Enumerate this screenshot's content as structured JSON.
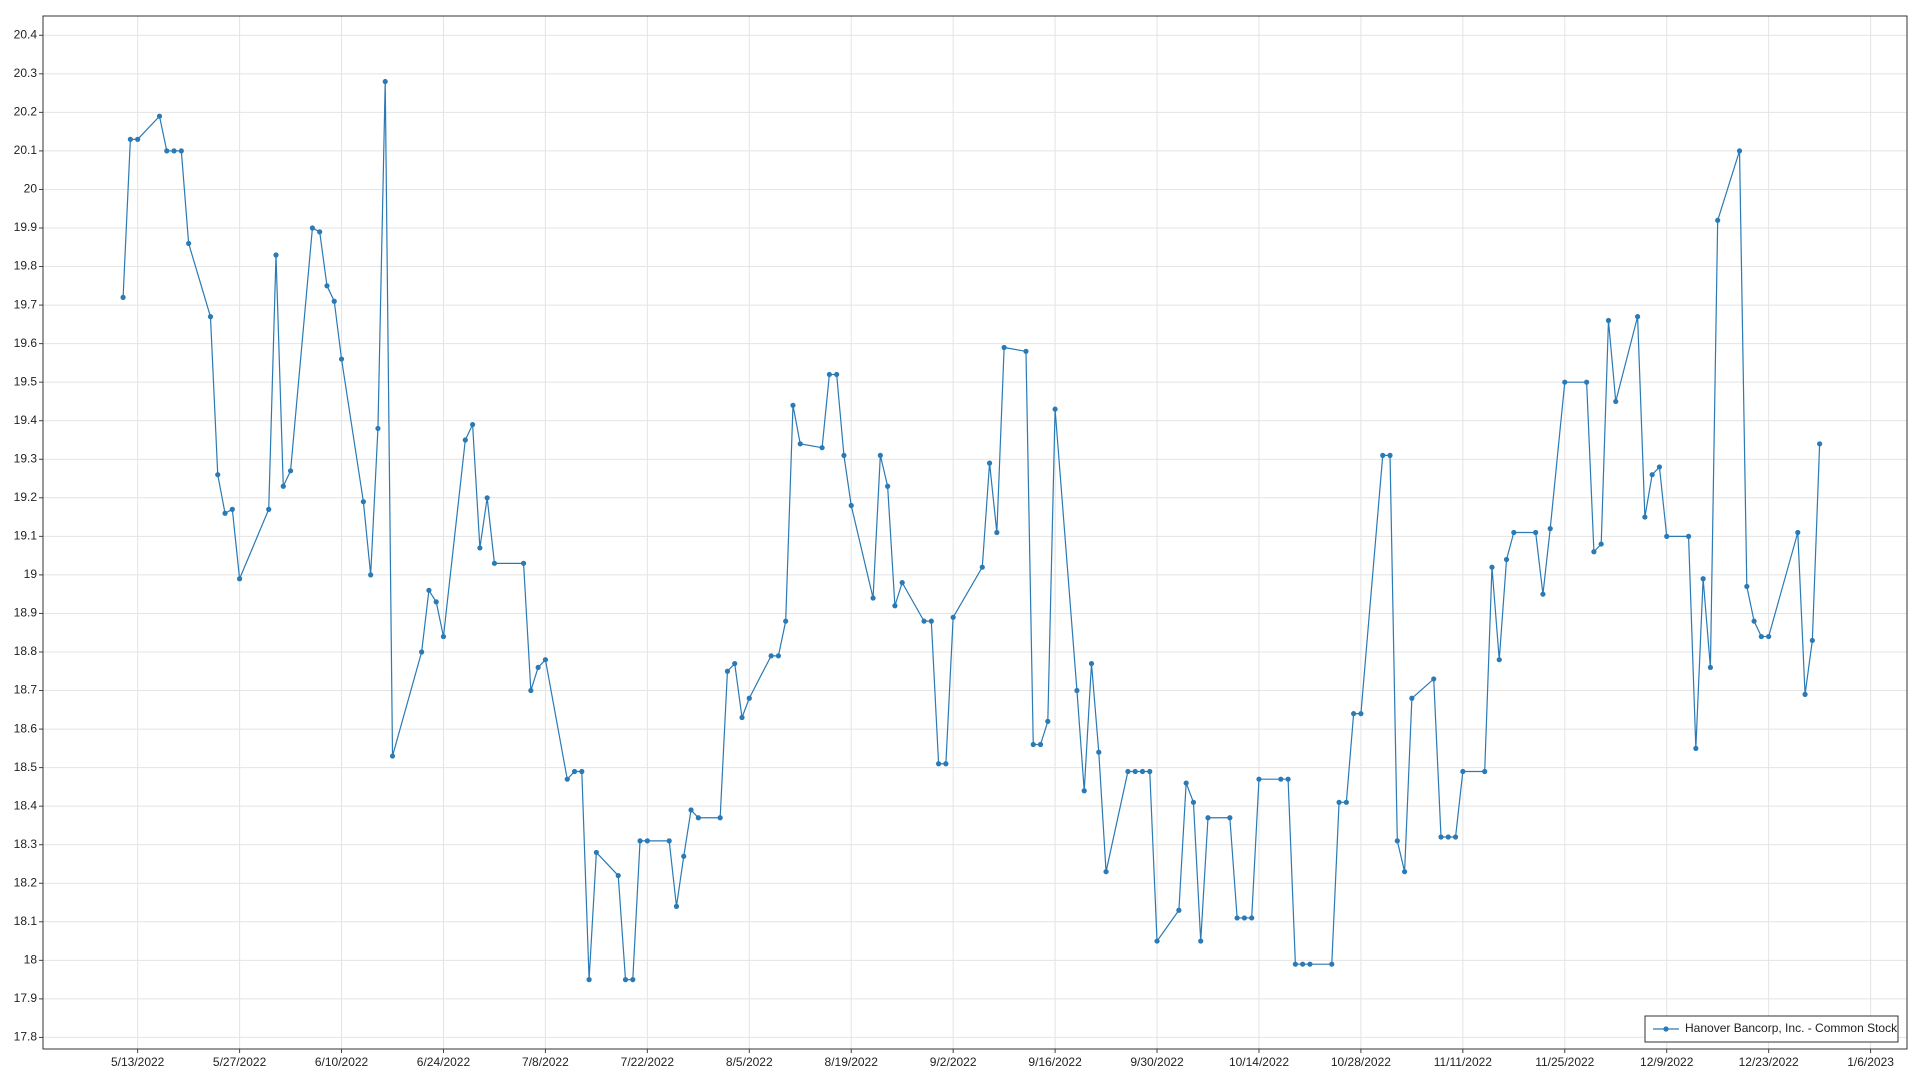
{
  "chart_data": {
    "type": "line",
    "x": [
      "5/11/2022",
      "5/12/2022",
      "5/13/2022",
      "5/16/2022",
      "5/17/2022",
      "5/18/2022",
      "5/19/2022",
      "5/20/2022",
      "5/23/2022",
      "5/24/2022",
      "5/25/2022",
      "5/26/2022",
      "5/27/2022",
      "5/31/2022",
      "6/1/2022",
      "6/2/2022",
      "6/3/2022",
      "6/6/2022",
      "6/7/2022",
      "6/8/2022",
      "6/9/2022",
      "6/10/2022",
      "6/13/2022",
      "6/14/2022",
      "6/15/2022",
      "6/16/2022",
      "6/17/2022",
      "6/21/2022",
      "6/22/2022",
      "6/23/2022",
      "6/24/2022",
      "6/27/2022",
      "6/28/2022",
      "6/29/2022",
      "6/30/2022",
      "7/1/2022",
      "7/5/2022",
      "7/6/2022",
      "7/7/2022",
      "7/8/2022",
      "7/11/2022",
      "7/12/2022",
      "7/13/2022",
      "7/14/2022",
      "7/15/2022",
      "7/18/2022",
      "7/19/2022",
      "7/20/2022",
      "7/21/2022",
      "7/22/2022",
      "7/25/2022",
      "7/26/2022",
      "7/27/2022",
      "7/28/2022",
      "7/29/2022",
      "8/1/2022",
      "8/2/2022",
      "8/3/2022",
      "8/4/2022",
      "8/5/2022",
      "8/8/2022",
      "8/9/2022",
      "8/10/2022",
      "8/11/2022",
      "8/12/2022",
      "8/15/2022",
      "8/16/2022",
      "8/17/2022",
      "8/18/2022",
      "8/19/2022",
      "8/22/2022",
      "8/23/2022",
      "8/24/2022",
      "8/25/2022",
      "8/26/2022",
      "8/29/2022",
      "8/30/2022",
      "8/31/2022",
      "9/1/2022",
      "9/2/2022",
      "9/6/2022",
      "9/7/2022",
      "9/8/2022",
      "9/9/2022",
      "9/12/2022",
      "9/13/2022",
      "9/14/2022",
      "9/15/2022",
      "9/16/2022",
      "9/19/2022",
      "9/20/2022",
      "9/21/2022",
      "9/22/2022",
      "9/23/2022",
      "9/26/2022",
      "9/27/2022",
      "9/28/2022",
      "9/29/2022",
      "9/30/2022",
      "10/3/2022",
      "10/4/2022",
      "10/5/2022",
      "10/6/2022",
      "10/7/2022",
      "10/10/2022",
      "10/11/2022",
      "10/12/2022",
      "10/13/2022",
      "10/14/2022",
      "10/17/2022",
      "10/18/2022",
      "10/19/2022",
      "10/20/2022",
      "10/21/2022",
      "10/24/2022",
      "10/25/2022",
      "10/26/2022",
      "10/27/2022",
      "10/28/2022",
      "10/31/2022",
      "11/1/2022",
      "11/2/2022",
      "11/3/2022",
      "11/4/2022",
      "11/7/2022",
      "11/8/2022",
      "11/9/2022",
      "11/10/2022",
      "11/11/2022",
      "11/14/2022",
      "11/15/2022",
      "11/16/2022",
      "11/17/2022",
      "11/18/2022",
      "11/21/2022",
      "11/22/2022",
      "11/23/2022",
      "11/25/2022",
      "11/28/2022",
      "11/29/2022",
      "11/30/2022",
      "12/1/2022",
      "12/2/2022",
      "12/5/2022",
      "12/6/2022",
      "12/7/2022",
      "12/8/2022",
      "12/9/2022",
      "12/12/2022",
      "12/13/2022",
      "12/14/2022",
      "12/15/2022",
      "12/16/2022",
      "12/19/2022",
      "12/20/2022",
      "12/21/2022",
      "12/22/2022",
      "12/23/2022",
      "12/27/2022",
      "12/28/2022",
      "12/29/2022",
      "12/30/2022"
    ],
    "series": [
      {
        "name": "Hanover Bancorp, Inc. - Common Stock",
        "color": "#2a7ab5",
        "values": [
          19.72,
          20.13,
          20.13,
          20.19,
          20.1,
          20.1,
          20.1,
          19.86,
          19.67,
          19.26,
          19.16,
          19.17,
          18.99,
          19.17,
          19.83,
          19.23,
          19.27,
          19.9,
          19.89,
          19.75,
          19.71,
          19.56,
          19.19,
          19.0,
          19.38,
          20.28,
          18.53,
          18.8,
          18.96,
          18.93,
          18.84,
          19.35,
          19.39,
          19.07,
          19.2,
          19.03,
          19.03,
          18.7,
          18.76,
          18.78,
          18.47,
          18.49,
          18.49,
          17.95,
          18.28,
          18.22,
          17.95,
          17.95,
          18.31,
          18.31,
          18.31,
          18.14,
          18.27,
          18.39,
          18.37,
          18.37,
          18.75,
          18.77,
          18.63,
          18.68,
          18.79,
          18.79,
          18.88,
          19.44,
          19.34,
          19.33,
          19.52,
          19.52,
          19.31,
          19.18,
          18.94,
          19.31,
          19.23,
          18.92,
          18.98,
          18.88,
          18.88,
          18.51,
          18.51,
          18.89,
          19.02,
          19.29,
          19.11,
          19.59,
          19.58,
          18.56,
          18.56,
          18.62,
          19.43,
          18.7,
          18.44,
          18.77,
          18.54,
          18.23,
          18.49,
          18.49,
          18.49,
          18.49,
          18.05,
          18.13,
          18.46,
          18.41,
          18.05,
          18.37,
          18.37,
          18.11,
          18.11,
          18.11,
          18.47,
          18.47,
          18.47,
          17.99,
          17.99,
          17.99,
          17.99,
          18.41,
          18.41,
          18.64,
          18.64,
          19.31,
          19.31,
          18.31,
          18.23,
          18.68,
          18.73,
          18.32,
          18.32,
          18.32,
          18.49,
          18.49,
          19.02,
          18.78,
          19.04,
          19.11,
          19.11,
          18.95,
          19.12,
          19.5,
          19.5,
          19.06,
          19.08,
          19.66,
          19.45,
          19.67,
          19.15,
          19.26,
          19.28,
          19.1,
          19.1,
          18.55,
          18.99,
          18.76,
          19.92,
          20.1,
          18.97,
          18.88,
          18.84,
          18.84,
          19.11,
          18.69,
          18.83,
          19.34
        ]
      }
    ],
    "xlim": [
      "4/30/2022",
      "1/11/2023"
    ],
    "xticks": [
      "5/13/2022",
      "5/27/2022",
      "6/10/2022",
      "6/24/2022",
      "7/8/2022",
      "7/22/2022",
      "8/5/2022",
      "8/19/2022",
      "9/2/2022",
      "9/16/2022",
      "9/30/2022",
      "10/14/2022",
      "10/28/2022",
      "11/11/2022",
      "11/25/2022",
      "12/9/2022",
      "12/23/2022",
      "1/6/2023"
    ],
    "ylim": [
      17.77,
      20.45
    ],
    "yticks": [
      17.8,
      17.9,
      18,
      18.1,
      18.2,
      18.3,
      18.4,
      18.5,
      18.6,
      18.7,
      18.8,
      18.9,
      19,
      19.1,
      19.2,
      19.3,
      19.4,
      19.5,
      19.6,
      19.7,
      19.8,
      19.9,
      20,
      20.1,
      20.2,
      20.3,
      20.4
    ],
    "grid": true,
    "legend": "lower right"
  }
}
